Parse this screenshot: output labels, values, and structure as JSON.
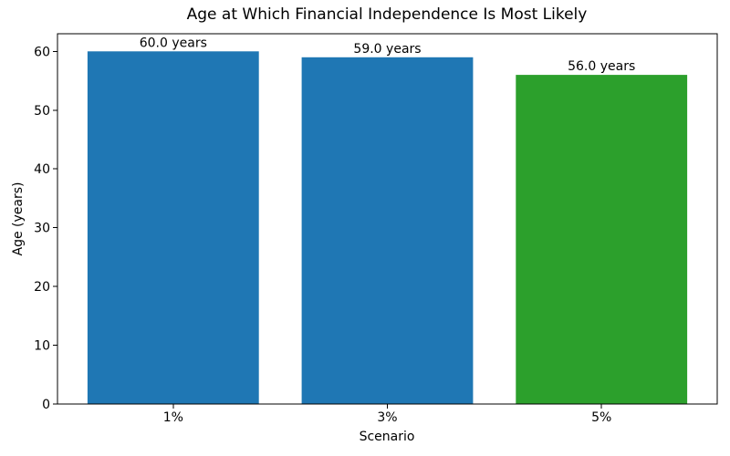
{
  "chart_data": {
    "type": "bar",
    "title": "Age at Which Financial Independence Is Most Likely",
    "xlabel": "Scenario",
    "ylabel": "Age (years)",
    "categories": [
      "1%",
      "3%",
      "5%"
    ],
    "values": [
      60.0,
      59.0,
      56.0
    ],
    "bar_labels": [
      "60.0 years",
      "59.0 years",
      "56.0 years"
    ],
    "bar_colors": [
      "#1f77b4",
      "#1f77b4",
      "#2ca02c"
    ],
    "yticks": [
      0,
      10,
      20,
      30,
      40,
      50,
      60
    ],
    "ylim": [
      0,
      63
    ],
    "bar_width": 0.8,
    "grid": false,
    "legend_position": "none",
    "axis_color": "#000000",
    "background_color": "#ffffff"
  }
}
